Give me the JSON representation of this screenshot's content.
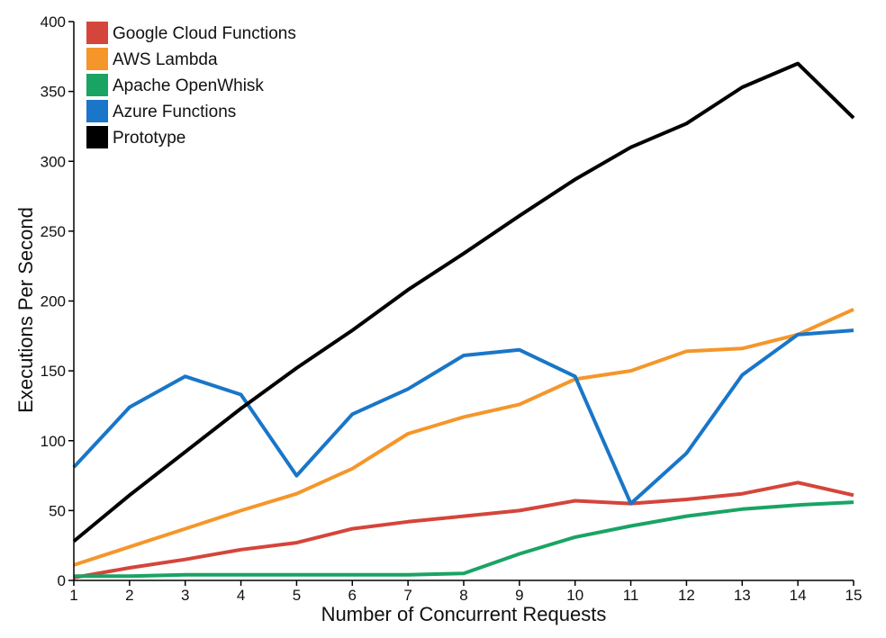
{
  "chart_data": {
    "type": "line",
    "title": "",
    "xlabel": "Number of Concurrent Requests",
    "ylabel": "Executions Per Second",
    "x": [
      1,
      2,
      3,
      4,
      5,
      6,
      7,
      8,
      9,
      10,
      11,
      12,
      13,
      14,
      15
    ],
    "xlim": [
      1,
      15
    ],
    "ylim": [
      0,
      400
    ],
    "x_ticks": [
      1,
      2,
      3,
      4,
      5,
      6,
      7,
      8,
      9,
      10,
      11,
      12,
      13,
      14,
      15
    ],
    "x_tick_labels": [
      "1",
      "2",
      "3",
      "4",
      "5",
      "6",
      "7",
      "8",
      "9",
      "10",
      "11",
      "12",
      "13",
      "14",
      "15"
    ],
    "y_ticks": [
      0,
      50,
      100,
      150,
      200,
      250,
      300,
      350,
      400
    ],
    "y_tick_labels": [
      "0",
      "50",
      "100",
      "150",
      "200",
      "250",
      "300",
      "350",
      "400"
    ],
    "grid": false,
    "legend_position": "top-left",
    "series": [
      {
        "name": "Google Cloud Functions",
        "color": "#d4453b",
        "values": [
          2,
          9,
          15,
          22,
          27,
          37,
          42,
          46,
          50,
          57,
          55,
          58,
          62,
          70,
          61
        ]
      },
      {
        "name": "AWS Lambda",
        "color": "#f5962a",
        "values": [
          11,
          24,
          37,
          50,
          62,
          80,
          105,
          117,
          126,
          144,
          150,
          164,
          166,
          176,
          194
        ]
      },
      {
        "name": "Apache OpenWhisk",
        "color": "#19a463",
        "values": [
          3,
          3,
          4,
          4,
          4,
          4,
          4,
          5,
          19,
          31,
          39,
          46,
          51,
          54,
          56
        ]
      },
      {
        "name": "Azure Functions",
        "color": "#1976c8",
        "values": [
          81,
          124,
          146,
          133,
          75,
          119,
          137,
          161,
          165,
          146,
          55,
          91,
          147,
          176,
          179
        ]
      },
      {
        "name": "Prototype",
        "color": "#000000",
        "values": [
          28,
          61,
          92,
          123,
          152,
          179,
          208,
          234,
          261,
          287,
          310,
          327,
          353,
          370,
          331
        ]
      }
    ]
  }
}
